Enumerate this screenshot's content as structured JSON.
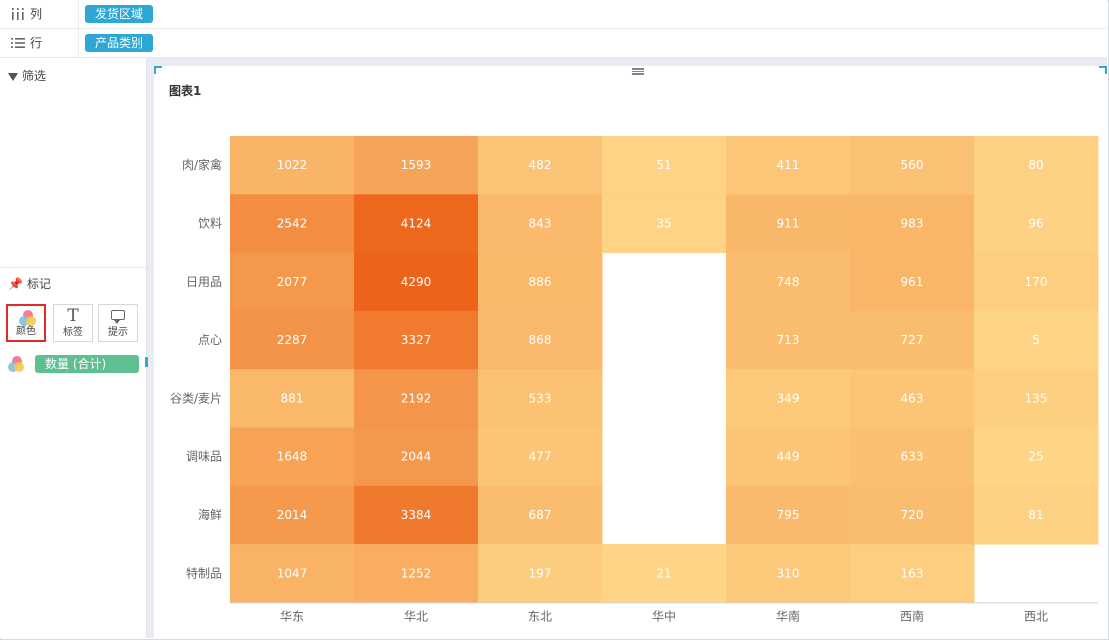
{
  "shelves": {
    "columns": {
      "icon": "columns-icon",
      "label": "列",
      "field": "发货区域"
    },
    "rows": {
      "icon": "rows-icon",
      "label": "行",
      "field": "产品类别"
    }
  },
  "left_panel": {
    "filter_label": "筛选",
    "marks_label": "标记",
    "mark_buttons": [
      {
        "label": "颜色",
        "icon": "color-palette-icon",
        "active": true
      },
      {
        "label": "标签",
        "icon": "text-label-icon",
        "active": false
      },
      {
        "label": "提示",
        "icon": "tooltip-icon",
        "active": false
      }
    ],
    "color_measure": "数量 (合计)"
  },
  "chart": {
    "title": "图表1"
  },
  "colors": {
    "accent": "#2ea7d6",
    "measure_pill": "#5fbf91",
    "heat_low": "#fed587",
    "heat_high": "#ec6419",
    "label_text": "#ffffff"
  },
  "chart_data": {
    "type": "heatmap",
    "title": "图表1",
    "x_categories": [
      "华东",
      "华北",
      "东北",
      "华中",
      "华南",
      "西南",
      "西北"
    ],
    "y_categories": [
      "肉/家禽",
      "饮料",
      "日用品",
      "点心",
      "谷类/麦片",
      "调味品",
      "海鲜",
      "特制品"
    ],
    "measure": "数量 (合计)",
    "values": [
      [
        1022,
        1593,
        482,
        51,
        411,
        560,
        80
      ],
      [
        2542,
        4124,
        843,
        35,
        911,
        983,
        96
      ],
      [
        2077,
        4290,
        886,
        null,
        748,
        961,
        170
      ],
      [
        2287,
        3327,
        868,
        null,
        713,
        727,
        5
      ],
      [
        881,
        2192,
        533,
        null,
        349,
        463,
        135
      ],
      [
        1648,
        2044,
        477,
        null,
        449,
        633,
        25
      ],
      [
        2014,
        3384,
        687,
        null,
        795,
        720,
        81
      ],
      [
        1047,
        1252,
        197,
        21,
        310,
        163,
        null
      ]
    ],
    "range": [
      5,
      4290
    ],
    "legend": "none"
  }
}
